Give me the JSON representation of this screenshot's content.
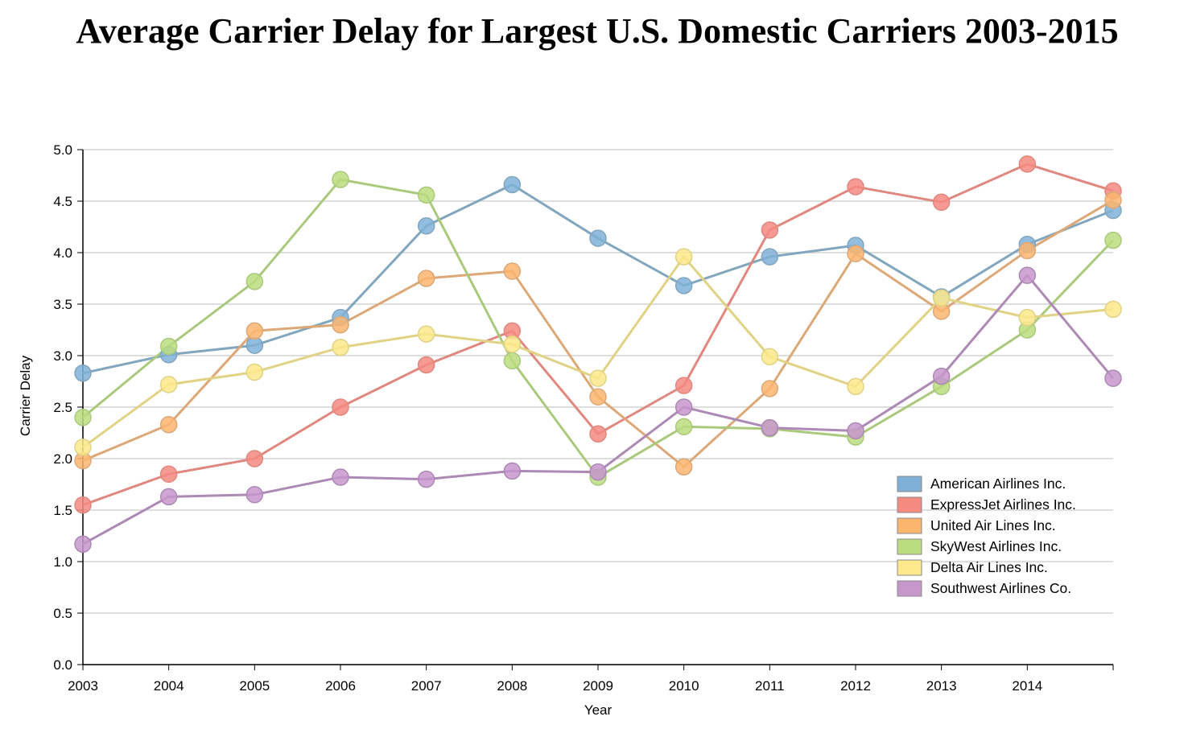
{
  "chart_data": {
    "type": "line",
    "title": "Average Carrier Delay for Largest U.S. Domestic Carriers 2003-2015",
    "xlabel": "Year",
    "ylabel": "Carrier Delay",
    "x": [
      2003,
      2004,
      2005,
      2006,
      2007,
      2008,
      2009,
      2010,
      2011,
      2012,
      2013,
      2014,
      2015
    ],
    "x_tick_labels": [
      "2003",
      "2004",
      "2005",
      "2006",
      "2007",
      "2008",
      "2009",
      "2010",
      "2011",
      "2012",
      "2013",
      "2014",
      ""
    ],
    "xlim": [
      2003,
      2015
    ],
    "ylim": [
      0,
      5
    ],
    "y_ticks": [
      0,
      0.5,
      1,
      1.5,
      2,
      2.5,
      3,
      3.5,
      4,
      4.5,
      5
    ],
    "y_tick_labels": [
      "0.0",
      "0.5",
      "1.0",
      "1.5",
      "2.0",
      "2.5",
      "3.0",
      "3.5",
      "4.0",
      "4.5",
      "5.0"
    ],
    "grid": "horizontal",
    "legend_position": "bottom-right",
    "series": [
      {
        "name": "American Airlines Inc.",
        "color": "#7fb1d8",
        "line_color": "#82a6be",
        "values": [
          2.83,
          3.01,
          3.1,
          3.37,
          4.26,
          4.66,
          4.14,
          3.68,
          3.96,
          4.07,
          3.57,
          4.08,
          4.41
        ]
      },
      {
        "name": "ExpressJet Airlines Inc.",
        "color": "#f48a80",
        "line_color": "#e08880",
        "values": [
          1.55,
          1.85,
          2.0,
          2.5,
          2.91,
          3.24,
          2.24,
          2.71,
          4.22,
          4.64,
          4.49,
          4.86,
          4.6
        ]
      },
      {
        "name": "United Air Lines Inc.",
        "color": "#fbb56e",
        "line_color": "#dca877",
        "values": [
          1.98,
          2.33,
          3.24,
          3.3,
          3.75,
          3.82,
          2.6,
          1.92,
          2.68,
          3.99,
          3.43,
          4.02,
          4.51
        ]
      },
      {
        "name": "SkyWest Airlines Inc.",
        "color": "#bbdd7f",
        "line_color": "#aac97c",
        "values": [
          2.4,
          3.09,
          3.72,
          4.71,
          4.56,
          2.95,
          1.82,
          2.31,
          2.29,
          2.21,
          2.7,
          3.25,
          4.12
        ]
      },
      {
        "name": "Delta Air Lines Inc.",
        "color": "#fde98b",
        "line_color": "#e0d385",
        "values": [
          2.11,
          2.72,
          2.84,
          3.08,
          3.21,
          3.11,
          2.78,
          3.96,
          2.99,
          2.7,
          3.56,
          3.37,
          3.45
        ]
      },
      {
        "name": "Southwest Airlines Co.",
        "color": "#c797cc",
        "line_color": "#ad89b5",
        "values": [
          1.17,
          1.63,
          1.65,
          1.82,
          1.8,
          1.88,
          1.87,
          2.5,
          2.3,
          2.27,
          2.8,
          3.78,
          2.78
        ]
      }
    ]
  }
}
